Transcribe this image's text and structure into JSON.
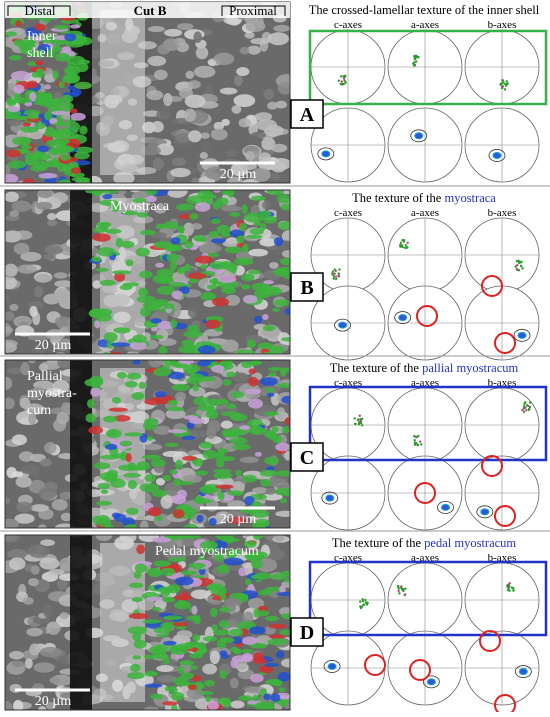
{
  "header": {
    "left": "Distal",
    "center": "Cut B",
    "right": "Proximal"
  },
  "panels": [
    {
      "letter": "A",
      "title": "The crossed-lamellar texture of the inner shell",
      "overlay_label": [
        "Inner",
        "shell"
      ],
      "scale_bar": "20 µm",
      "axes": [
        "c-axes",
        "a-axes",
        "b-axes"
      ]
    },
    {
      "letter": "B",
      "title": "The texture of the",
      "title_highlight": "myostraca",
      "overlay_label": [
        "Myostraca"
      ],
      "scale_bar": "20 µm",
      "axes": [
        "c-axes",
        "a-axes",
        "b-axes"
      ]
    },
    {
      "letter": "C",
      "title": "The texture of the",
      "title_highlight": "pallial myostracum",
      "overlay_label": [
        "Pallial",
        "myostra-",
        "cum"
      ],
      "scale_bar": "20 µm",
      "axes": [
        "c-axes",
        "a-axes",
        "b-axes"
      ]
    },
    {
      "letter": "D",
      "title": "The texture of the",
      "title_highlight": "pedal myostracum",
      "overlay_label": [
        "Pedal myostracum"
      ],
      "scale_bar": "20 µm",
      "axes": [
        "c-axes",
        "a-axes",
        "b-axes"
      ]
    }
  ]
}
